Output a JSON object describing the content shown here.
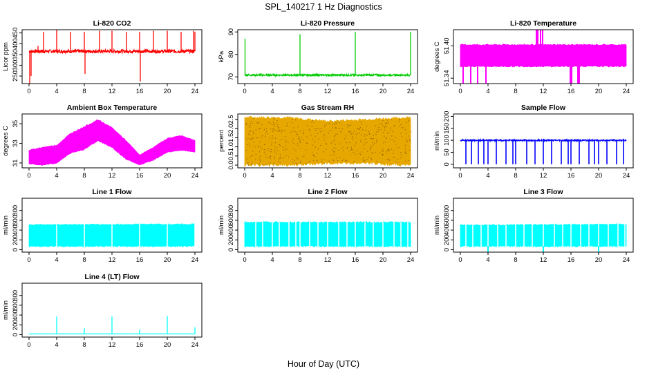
{
  "figure": {
    "title": "SPL_140217  1 Hz Diagnostics",
    "xlabel": "Hour of Day (UTC)"
  },
  "chart_data": [
    {
      "id": "co2",
      "type": "line",
      "title": "Li-820 CO2",
      "ylabel": "Licor ppm",
      "color": "#ff0000",
      "x_ticks": [
        0,
        4,
        8,
        12,
        16,
        20,
        24
      ],
      "xlim": [
        0,
        24
      ],
      "ylim": [
        215,
        465
      ],
      "y_ticks": [
        "250",
        "300",
        "350",
        "400",
        "450"
      ],
      "y_tick_values": [
        250,
        300,
        350,
        400,
        450
      ],
      "baseline": 365,
      "noise": 8,
      "spikes": [
        {
          "x": 0.1,
          "y": 215
        },
        {
          "x": 0.3,
          "y": 250
        },
        {
          "x": 1.3,
          "y": 390
        },
        {
          "x": 2.1,
          "y": 455
        },
        {
          "x": 4.0,
          "y": 465
        },
        {
          "x": 6.0,
          "y": 455
        },
        {
          "x": 8.0,
          "y": 455
        },
        {
          "x": 8.1,
          "y": 260
        },
        {
          "x": 10.2,
          "y": 460
        },
        {
          "x": 12.0,
          "y": 460
        },
        {
          "x": 14.1,
          "y": 455
        },
        {
          "x": 16.0,
          "y": 455
        },
        {
          "x": 16.1,
          "y": 225
        },
        {
          "x": 18.0,
          "y": 460
        },
        {
          "x": 20.0,
          "y": 460
        },
        {
          "x": 22.0,
          "y": 455
        },
        {
          "x": 23.8,
          "y": 460
        },
        {
          "x": 24.0,
          "y": 455
        }
      ]
    },
    {
      "id": "pressure",
      "type": "line",
      "title": "Li-820 Pressure",
      "ylabel": "kPa",
      "color": "#00cc00",
      "x_ticks": [
        0,
        4,
        8,
        12,
        16,
        20,
        24
      ],
      "xlim": [
        0,
        24
      ],
      "ylim": [
        67,
        91
      ],
      "y_ticks": [
        "70",
        "80",
        "90"
      ],
      "y_tick_values": [
        70,
        80,
        90
      ],
      "baseline": 70.8,
      "noise": 0.4,
      "spikes": [
        {
          "x": 0.05,
          "y": 87
        },
        {
          "x": 8.0,
          "y": 89
        },
        {
          "x": 16.0,
          "y": 90
        },
        {
          "x": 24.0,
          "y": 90
        }
      ]
    },
    {
      "id": "li820temp",
      "type": "band",
      "title": "Li-820 Temperature",
      "ylabel": "degrees C",
      "color": "#ff00ff",
      "x_ticks": [
        0,
        4,
        8,
        12,
        16,
        20,
        24
      ],
      "xlim": [
        0,
        24
      ],
      "ylim": [
        51.33,
        51.43
      ],
      "y_ticks": [
        "51.34",
        "51.40"
      ],
      "y_tick_values": [
        51.34,
        51.4
      ],
      "band_low": 51.362,
      "band_high": 51.402,
      "up_spikes": [
        11.0,
        11.2,
        11.6,
        11.9
      ],
      "down_spikes": [
        0.4,
        1.5,
        2.5,
        3.7,
        15.9,
        16.1,
        17.0,
        17.2
      ]
    },
    {
      "id": "boxtemp",
      "type": "band",
      "title": "Ambient Box Temperature",
      "ylabel": "degrees C",
      "color": "#ff00ff",
      "x_ticks": [
        0,
        4,
        8,
        12,
        16,
        20,
        24
      ],
      "xlim": [
        0,
        24
      ],
      "ylim": [
        30.5,
        36
      ],
      "y_ticks": [
        "31",
        "33",
        "35"
      ],
      "y_tick_values": [
        31,
        33,
        35
      ],
      "trend": [
        {
          "x": 0,
          "lo": 30.9,
          "hi": 32.3
        },
        {
          "x": 2,
          "lo": 30.8,
          "hi": 32.6
        },
        {
          "x": 4,
          "lo": 31.0,
          "hi": 32.8
        },
        {
          "x": 6,
          "lo": 32.0,
          "hi": 34.0
        },
        {
          "x": 8,
          "lo": 32.4,
          "hi": 34.7
        },
        {
          "x": 10,
          "lo": 33.3,
          "hi": 35.4
        },
        {
          "x": 12,
          "lo": 32.6,
          "hi": 34.6
        },
        {
          "x": 14,
          "lo": 31.4,
          "hi": 33.3
        },
        {
          "x": 16,
          "lo": 30.8,
          "hi": 31.8
        },
        {
          "x": 18,
          "lo": 31.3,
          "hi": 32.6
        },
        {
          "x": 20,
          "lo": 32.1,
          "hi": 33.5
        },
        {
          "x": 22,
          "lo": 32.3,
          "hi": 33.8
        },
        {
          "x": 24,
          "lo": 32.1,
          "hi": 33.3
        }
      ]
    },
    {
      "id": "rh",
      "type": "band",
      "title": "Gas Stream RH",
      "ylabel": "percent",
      "color": "#e6a800",
      "x_ticks": [
        0,
        4,
        8,
        12,
        16,
        20,
        24
      ],
      "xlim": [
        0,
        24
      ],
      "ylim": [
        -0.15,
        2.8
      ],
      "y_ticks": [
        "0.0",
        "0.5",
        "1.0",
        "1.5",
        "2.0",
        "2.5"
      ],
      "y_tick_values": [
        0,
        0.5,
        1,
        1.5,
        2,
        2.5
      ],
      "trend": [
        {
          "x": 0,
          "lo": 0.0,
          "hi": 2.6
        },
        {
          "x": 6,
          "lo": 0.0,
          "hi": 2.6
        },
        {
          "x": 12,
          "lo": 0.1,
          "hi": 2.4
        },
        {
          "x": 18,
          "lo": 0.1,
          "hi": 2.5
        },
        {
          "x": 24,
          "lo": 0.0,
          "hi": 2.6
        }
      ]
    },
    {
      "id": "sampleflow",
      "type": "line",
      "title": "Sample Flow",
      "ylabel": "ml/min",
      "color": "#0000ff",
      "x_ticks": [
        0,
        4,
        8,
        12,
        16,
        20,
        24
      ],
      "xlim": [
        0,
        24
      ],
      "ylim": [
        -15,
        210
      ],
      "y_ticks": [
        "0",
        "50",
        "100",
        "150",
        "200"
      ],
      "y_tick_values": [
        0,
        50,
        100,
        150,
        200
      ],
      "baseline": 100,
      "noise": 3,
      "dips": [
        0.8,
        1.6,
        2.6,
        3.4,
        4.0,
        5.2,
        6.6,
        7.6,
        8.0,
        9.6,
        10.8,
        12.0,
        13.2,
        14.6,
        15.6,
        16.0,
        17.2,
        18.6,
        19.4,
        20.0,
        21.2,
        22.6,
        23.6
      ]
    },
    {
      "id": "line1",
      "type": "band",
      "title": "Line 1 Flow",
      "ylabel": "ml/min",
      "color": "#00ffff",
      "x_ticks": [
        0,
        4,
        8,
        12,
        16,
        20,
        24
      ],
      "xlim": [
        0,
        24
      ],
      "ylim": [
        -50,
        1050
      ],
      "y_ticks": [
        "0",
        "200",
        "400",
        "600",
        "800"
      ],
      "y_tick_values": [
        0,
        200,
        400,
        600,
        800
      ],
      "trend": [
        {
          "x": 0,
          "lo": 70,
          "hi": 510
        },
        {
          "x": 24,
          "lo": 70,
          "hi": 520
        }
      ],
      "gaps": [
        4,
        8,
        12,
        16,
        20,
        24
      ]
    },
    {
      "id": "line2",
      "type": "band",
      "title": "Line 2 Flow",
      "ylabel": "ml/min",
      "color": "#00ffff",
      "x_ticks": [
        0,
        4,
        8,
        12,
        16,
        20,
        24
      ],
      "xlim": [
        0,
        24
      ],
      "ylim": [
        -50,
        1050
      ],
      "y_ticks": [
        "0",
        "200",
        "400",
        "600",
        "800"
      ],
      "y_tick_values": [
        0,
        200,
        400,
        600,
        800
      ],
      "trend": [
        {
          "x": 0,
          "lo": 70,
          "hi": 560
        },
        {
          "x": 24,
          "lo": 70,
          "hi": 560
        }
      ],
      "gaps": [
        1.6,
        2.6,
        4,
        5.0,
        6.4,
        7.4,
        8,
        9.4,
        10.6,
        12,
        13.6,
        14.8,
        16,
        17.4,
        18.6,
        20,
        21.6,
        22.6,
        23.6
      ]
    },
    {
      "id": "line3",
      "type": "band",
      "title": "Line 3 Flow",
      "ylabel": "ml/min",
      "color": "#00ffff",
      "x_ticks": [
        0,
        4,
        8,
        12,
        16,
        20,
        24
      ],
      "xlim": [
        0,
        24
      ],
      "ylim": [
        -50,
        1050
      ],
      "y_ticks": [
        "0",
        "200",
        "400",
        "600",
        "800"
      ],
      "y_tick_values": [
        0,
        200,
        400,
        600,
        800
      ],
      "trend": [
        {
          "x": 0,
          "lo": 70,
          "hi": 500
        },
        {
          "x": 24,
          "lo": 70,
          "hi": 520
        }
      ],
      "gaps": [
        0.8,
        1.8,
        3.0,
        4,
        5.4,
        6.6,
        8,
        9.2,
        10.4,
        12,
        13.6,
        14.8,
        16,
        17.4,
        18.6,
        20,
        21.4,
        22.8,
        23.8
      ],
      "down_spikes": [
        4.0,
        12.0,
        20.0
      ]
    },
    {
      "id": "line4",
      "type": "line",
      "title": "Line 4 (LT) Flow",
      "ylabel": "ml/min",
      "color": "#00ffff",
      "x_ticks": [
        0,
        4,
        8,
        12,
        16,
        20,
        24
      ],
      "xlim": [
        0,
        24
      ],
      "ylim": [
        -50,
        1050
      ],
      "y_ticks": [
        "0",
        "200",
        "400",
        "600",
        "800"
      ],
      "y_tick_values": [
        0,
        200,
        400,
        600,
        800
      ],
      "baseline": 15,
      "noise": 2,
      "spikes": [
        {
          "x": 4,
          "y": 370
        },
        {
          "x": 8,
          "y": 130
        },
        {
          "x": 12,
          "y": 370
        },
        {
          "x": 16,
          "y": 110
        },
        {
          "x": 20,
          "y": 380
        },
        {
          "x": 24,
          "y": 150
        }
      ]
    }
  ]
}
